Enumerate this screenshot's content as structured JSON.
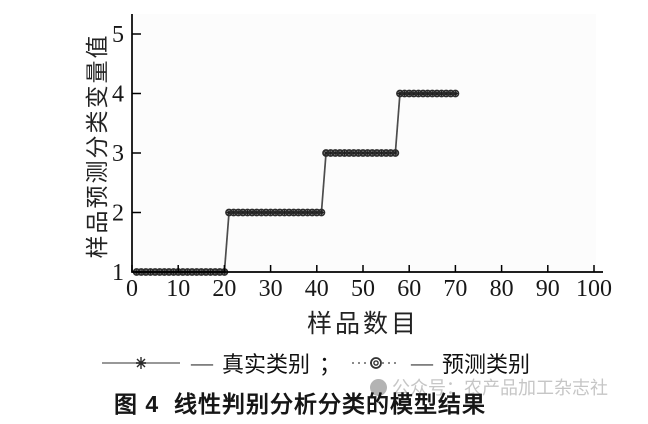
{
  "figure_caption": {
    "text": "图 4  线性判别分析分类的模型结果"
  },
  "watermark": {
    "icon": "publisher-badge-icon",
    "text": "公众号：农产品加工杂志社"
  },
  "legend": {
    "dash": "—",
    "separator": "；",
    "entries": [
      {
        "label": "真实类别",
        "marker": "star-on-solid-line"
      },
      {
        "label": "预测类别",
        "marker": "circle-on-dotted-line"
      }
    ]
  },
  "chart_data": {
    "type": "line",
    "subtype": "step",
    "title": "",
    "xlabel": "样品数目",
    "ylabel": "样品预测分类变量值",
    "xlim": [
      0,
      100
    ],
    "ylim": [
      1,
      5
    ],
    "xticks": [
      0,
      10,
      20,
      30,
      40,
      50,
      60,
      70,
      80,
      90,
      100
    ],
    "yticks": [
      1,
      2,
      3,
      4,
      5
    ],
    "grid": false,
    "legend_position": "below-chart",
    "axis_color": "#000000",
    "plot_bg": "#fcfcfc",
    "series": [
      {
        "name": "真实类别",
        "marker": "star",
        "line_style": "solid",
        "color": "#4d4d4d",
        "segments": [
          {
            "y": 1,
            "x_from": 1,
            "x_to": 20
          },
          {
            "y": 2,
            "x_from": 21,
            "x_to": 41
          },
          {
            "y": 3,
            "x_from": 42,
            "x_to": 57
          },
          {
            "y": 4,
            "x_from": 58,
            "x_to": 70
          }
        ]
      },
      {
        "name": "预测类别",
        "marker": "circle",
        "line_style": "dotted",
        "color": "#2b2b2b",
        "segments": [
          {
            "y": 1,
            "x_from": 1,
            "x_to": 20
          },
          {
            "y": 2,
            "x_from": 21,
            "x_to": 41
          },
          {
            "y": 3,
            "x_from": 42,
            "x_to": 57
          },
          {
            "y": 4,
            "x_from": 58,
            "x_to": 70
          }
        ]
      }
    ]
  }
}
